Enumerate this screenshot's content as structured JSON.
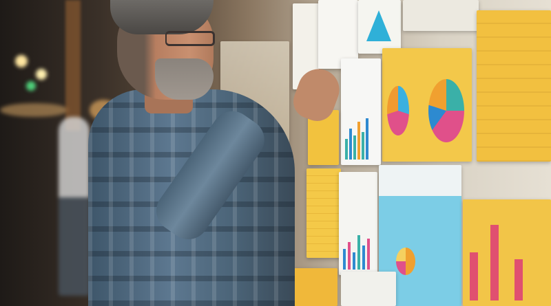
{
  "scene": {
    "subject": "man-pinning-chart-on-wall",
    "colors": {
      "background_dark": "#1e1a17",
      "wall": "#ddd6c8",
      "poster_yellow": "#f2c440",
      "poster_blue": "#6cc2e0",
      "shirt": "#4d6b80",
      "chart_pink": "#e0508a",
      "chart_teal": "#3ab0a8"
    }
  }
}
